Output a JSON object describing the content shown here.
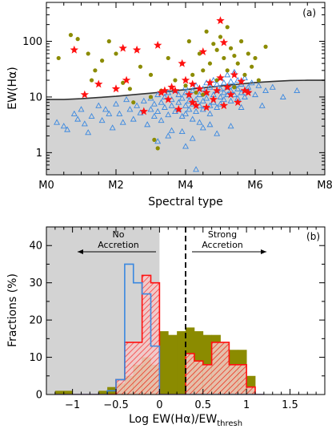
{
  "chart_data": [
    {
      "type": "scatter",
      "panel_label": "(a)",
      "xlabel": "Spectral type",
      "ylabel": "EW(Hα)",
      "xlim": [
        0,
        8
      ],
      "ylim_log": [
        0.4,
        500
      ],
      "yscale": "log",
      "x_tick_labels": [
        "M0",
        "M2",
        "M4",
        "M6",
        "M8"
      ],
      "x_tick_values": [
        0,
        2,
        4,
        6,
        8
      ],
      "y_tick_labels": [
        "1",
        "10",
        "100"
      ],
      "y_tick_values": [
        1,
        10,
        100
      ],
      "colors": {
        "threshold_fill": "#d3d3d3",
        "triangles": "#3a88e0",
        "dots": "#8b8b00",
        "stars": "#ff1010",
        "curve": "#333333"
      },
      "threshold_curve": {
        "x": [
          0,
          0.5,
          1,
          1.5,
          2,
          2.5,
          3,
          3.5,
          4,
          4.5,
          5,
          5.5,
          6,
          6.5,
          7,
          7.5,
          8
        ],
        "y": [
          9,
          9,
          9.3,
          9.8,
          10.3,
          11,
          11.7,
          12.6,
          13.6,
          14.6,
          15.8,
          17,
          18.2,
          19,
          19.8,
          20,
          20
        ]
      },
      "series": [
        {
          "marker": "triangle",
          "points": [
            [
              0.3,
              3.5
            ],
            [
              0.5,
              3.0
            ],
            [
              0.6,
              2.6
            ],
            [
              0.8,
              5.0
            ],
            [
              0.9,
              4.0
            ],
            [
              1.0,
              6.0
            ],
            [
              1.1,
              3.3
            ],
            [
              1.2,
              2.3
            ],
            [
              1.3,
              4.5
            ],
            [
              1.5,
              7.0
            ],
            [
              1.6,
              3.8
            ],
            [
              1.7,
              6.0
            ],
            [
              1.8,
              5.0
            ],
            [
              1.9,
              2.8
            ],
            [
              2.0,
              7.5
            ],
            [
              2.1,
              5.0
            ],
            [
              2.2,
              3.5
            ],
            [
              2.3,
              9.0
            ],
            [
              2.4,
              6.0
            ],
            [
              2.5,
              4.0
            ],
            [
              2.6,
              7.0
            ],
            [
              2.7,
              5.2
            ],
            [
              2.8,
              8.5
            ],
            [
              2.9,
              3.2
            ],
            [
              3.0,
              6.0
            ],
            [
              3.0,
              9.5
            ],
            [
              3.1,
              4.5
            ],
            [
              3.1,
              7.5
            ],
            [
              3.2,
              11
            ],
            [
              3.2,
              5.5
            ],
            [
              3.3,
              8.0
            ],
            [
              3.3,
              3.8
            ],
            [
              3.4,
              6.5
            ],
            [
              3.4,
              10
            ],
            [
              3.5,
              4.8
            ],
            [
              3.5,
              12
            ],
            [
              3.6,
              7.0
            ],
            [
              3.6,
              9.0
            ],
            [
              3.6,
              2.5
            ],
            [
              3.7,
              5.5
            ],
            [
              3.7,
              13
            ],
            [
              3.8,
              8.0
            ],
            [
              3.8,
              6.0
            ],
            [
              3.8,
              11
            ],
            [
              3.9,
              4.5
            ],
            [
              3.9,
              9.5
            ],
            [
              4.0,
              7.0
            ],
            [
              4.0,
              12
            ],
            [
              4.0,
              5.0
            ],
            [
              4.0,
              15
            ],
            [
              4.1,
              8.5
            ],
            [
              4.1,
              6.0
            ],
            [
              4.1,
              10.5
            ],
            [
              4.2,
              4.0
            ],
            [
              4.2,
              13
            ],
            [
              4.2,
              7.5
            ],
            [
              4.3,
              9.0
            ],
            [
              4.3,
              16
            ],
            [
              4.3,
              5.5
            ],
            [
              4.4,
              11
            ],
            [
              4.4,
              7.0
            ],
            [
              4.4,
              3.5
            ],
            [
              4.5,
              14
            ],
            [
              4.5,
              8.5
            ],
            [
              4.5,
              6.0
            ],
            [
              4.6,
              12
            ],
            [
              4.6,
              18
            ],
            [
              4.6,
              9.5
            ],
            [
              4.7,
              7.0
            ],
            [
              4.7,
              15
            ],
            [
              4.7,
              5.0
            ],
            [
              4.8,
              11
            ],
            [
              4.8,
              20
            ],
            [
              4.8,
              8.0
            ],
            [
              4.9,
              13
            ],
            [
              4.9,
              6.5
            ],
            [
              4.9,
              17
            ],
            [
              5.0,
              10
            ],
            [
              5.0,
              22
            ],
            [
              5.0,
              7.5
            ],
            [
              5.0,
              14
            ],
            [
              5.1,
              12
            ],
            [
              5.1,
              18
            ],
            [
              5.1,
              9.0
            ],
            [
              5.2,
              15
            ],
            [
              5.2,
              25
            ],
            [
              5.2,
              11
            ],
            [
              5.3,
              13
            ],
            [
              5.3,
              19
            ],
            [
              5.3,
              8.5
            ],
            [
              5.4,
              16
            ],
            [
              5.4,
              11
            ],
            [
              5.4,
              28
            ],
            [
              5.5,
              14
            ],
            [
              5.5,
              20
            ],
            [
              5.5,
              9.5
            ],
            [
              5.6,
              12
            ],
            [
              5.6,
              17
            ],
            [
              5.7,
              22
            ],
            [
              5.7,
              10
            ],
            [
              5.8,
              15
            ],
            [
              5.8,
              13
            ],
            [
              5.9,
              18
            ],
            [
              6.0,
              11
            ],
            [
              6.1,
              16
            ],
            [
              6.3,
              13
            ],
            [
              6.5,
              15
            ],
            [
              6.8,
              10
            ],
            [
              7.2,
              13
            ],
            [
              3.2,
              1.6
            ],
            [
              3.5,
              2.0
            ],
            [
              4.0,
              1.3
            ],
            [
              4.5,
              2.8
            ],
            [
              4.9,
              2.2
            ],
            [
              5.3,
              3.0
            ],
            [
              4.2,
              1.8
            ],
            [
              3.9,
              2.4
            ],
            [
              4.3,
              0.5
            ],
            [
              4.7,
              3.2
            ],
            [
              5.6,
              6.5
            ],
            [
              6.2,
              7.0
            ]
          ]
        },
        {
          "marker": "dot",
          "points": [
            [
              0.35,
              50
            ],
            [
              0.7,
              130
            ],
            [
              0.9,
              110
            ],
            [
              1.2,
              60
            ],
            [
              1.3,
              20
            ],
            [
              1.4,
              30
            ],
            [
              1.6,
              45
            ],
            [
              1.8,
              100
            ],
            [
              2.0,
              60
            ],
            [
              2.2,
              18
            ],
            [
              2.4,
              14
            ],
            [
              2.5,
              8
            ],
            [
              2.7,
              35
            ],
            [
              3.0,
              10
            ],
            [
              3.0,
              25
            ],
            [
              3.1,
              1.7
            ],
            [
              3.3,
              13
            ],
            [
              3.5,
              50
            ],
            [
              3.7,
              20
            ],
            [
              3.9,
              40
            ],
            [
              4.0,
              16
            ],
            [
              4.1,
              100
            ],
            [
              4.2,
              25
            ],
            [
              4.3,
              12
            ],
            [
              4.4,
              60
            ],
            [
              4.5,
              30
            ],
            [
              4.6,
              150
            ],
            [
              4.7,
              40
            ],
            [
              4.8,
              90
            ],
            [
              4.9,
              20
            ],
            [
              5.0,
              120
            ],
            [
              5.1,
              50
            ],
            [
              5.2,
              30
            ],
            [
              5.3,
              75
            ],
            [
              5.4,
              15
            ],
            [
              5.5,
              40
            ],
            [
              5.6,
              100
            ],
            [
              5.7,
              25
            ],
            [
              5.8,
              60
            ],
            [
              5.9,
              35
            ],
            [
              6.0,
              50
            ],
            [
              6.1,
              20
            ],
            [
              6.3,
              80
            ],
            [
              4.5,
              11
            ],
            [
              3.2,
              1.2
            ],
            [
              5.2,
              180
            ],
            [
              4.9,
              70
            ],
            [
              5.4,
              55
            ]
          ]
        },
        {
          "marker": "star",
          "points": [
            [
              0.8,
              70
            ],
            [
              1.1,
              11
            ],
            [
              1.5,
              17
            ],
            [
              2.0,
              14
            ],
            [
              2.2,
              75
            ],
            [
              2.3,
              20
            ],
            [
              2.6,
              70
            ],
            [
              2.8,
              5.5
            ],
            [
              3.2,
              85
            ],
            [
              3.3,
              12
            ],
            [
              3.5,
              9
            ],
            [
              3.6,
              15
            ],
            [
              3.7,
              13
            ],
            [
              3.8,
              6
            ],
            [
              3.9,
              40
            ],
            [
              4.0,
              20
            ],
            [
              4.1,
              11
            ],
            [
              4.2,
              17
            ],
            [
              4.3,
              7
            ],
            [
              4.4,
              14
            ],
            [
              4.5,
              65
            ],
            [
              4.6,
              12
            ],
            [
              4.7,
              18
            ],
            [
              4.8,
              9
            ],
            [
              4.9,
              13
            ],
            [
              5.0,
              235
            ],
            [
              5.0,
              22
            ],
            [
              5.1,
              7
            ],
            [
              5.1,
              95
            ],
            [
              5.2,
              15
            ],
            [
              5.3,
              11
            ],
            [
              5.4,
              25
            ],
            [
              5.5,
              8
            ],
            [
              5.6,
              19
            ],
            [
              5.7,
              13
            ],
            [
              5.8,
              12
            ],
            [
              4.2,
              8
            ],
            [
              3.4,
              13
            ],
            [
              4.6,
              6.5
            ]
          ]
        }
      ]
    },
    {
      "type": "histogram",
      "panel_label": "(b)",
      "xlabel_main": "Log EW(Hα)/EW",
      "xlabel_sub": "thresh",
      "ylabel": "Fractions (%)",
      "xlim": [
        -1.3,
        1.9
      ],
      "ylim": [
        0,
        45
      ],
      "x_tick_labels": [
        "−1",
        "−0.5",
        "0",
        "0.5",
        "1",
        "1.5"
      ],
      "x_tick_values": [
        -1,
        -0.5,
        0,
        0.5,
        1,
        1.5
      ],
      "y_tick_labels": [
        "0",
        "10",
        "20",
        "30",
        "40"
      ],
      "y_tick_values": [
        0,
        10,
        20,
        30,
        40
      ],
      "shaded_region": [
        -1.3,
        0
      ],
      "threshold_line": 0.3,
      "annotations": {
        "no_accretion": [
          "No",
          "Accretion"
        ],
        "strong_accretion": [
          "Strong",
          "Accretion"
        ]
      },
      "bin_edges": [
        -1.2,
        -1.1,
        -1.0,
        -0.9,
        -0.8,
        -0.7,
        -0.6,
        -0.5,
        -0.4,
        -0.3,
        -0.2,
        -0.1,
        0.0,
        0.1,
        0.2,
        0.3,
        0.4,
        0.5,
        0.6,
        0.7,
        0.8,
        0.9,
        1.0,
        1.1,
        1.2
      ],
      "colors": {
        "shade": "#d3d3d3",
        "olive": "#8b8b00",
        "red": "#ff1010",
        "blue": "#3a88e0"
      },
      "series": [
        {
          "style": "olive-filled",
          "values": [
            1,
            1,
            0,
            0,
            0,
            1,
            2,
            3,
            5,
            8,
            10,
            8,
            17,
            16,
            17,
            18,
            17,
            16,
            16,
            14,
            12,
            12,
            5,
            0
          ]
        },
        {
          "style": "red-hatched",
          "values": [
            0,
            0,
            0,
            0,
            0,
            0,
            0,
            4,
            14,
            14,
            32,
            30,
            0,
            0,
            0,
            11,
            9,
            8,
            14,
            14,
            8,
            8,
            2,
            0
          ]
        },
        {
          "style": "blue-line",
          "values": [
            0,
            0,
            0,
            0,
            0,
            0,
            1,
            4,
            35,
            30,
            27,
            13,
            0,
            0,
            0,
            0,
            0,
            0,
            0,
            0,
            0,
            0,
            0,
            0
          ]
        }
      ]
    }
  ]
}
